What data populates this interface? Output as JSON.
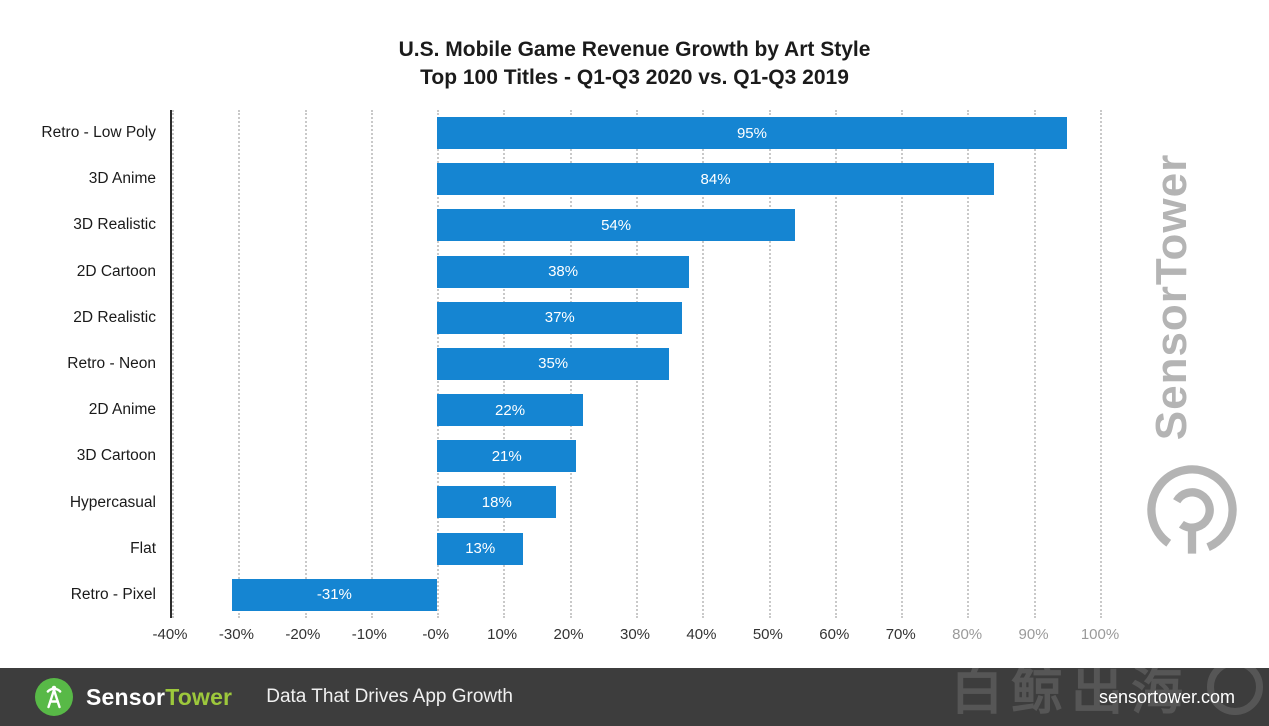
{
  "chart_data": {
    "type": "bar",
    "orientation": "horizontal",
    "title": "U.S. Mobile Game Revenue Growth by Art Style",
    "subtitle": "Top 100 Titles - Q1-Q3 2020 vs. Q1-Q3 2019",
    "categories": [
      "Retro - Low Poly",
      "3D Anime",
      "3D Realistic",
      "2D Cartoon",
      "2D Realistic",
      "Retro - Neon",
      "2D Anime",
      "3D Cartoon",
      "Hypercasual",
      "Flat",
      "Retro - Pixel"
    ],
    "values": [
      95,
      84,
      54,
      38,
      37,
      35,
      22,
      21,
      18,
      13,
      -31
    ],
    "value_labels": [
      "95%",
      "84%",
      "54%",
      "38%",
      "37%",
      "35%",
      "22%",
      "21%",
      "18%",
      "13%",
      "-31%"
    ],
    "xlim": [
      -40,
      100
    ],
    "xticks": [
      -40,
      -30,
      -20,
      -10,
      0,
      10,
      20,
      30,
      40,
      50,
      60,
      70,
      80,
      90,
      100
    ],
    "xtick_labels": [
      "-40%",
      "-30%",
      "-20%",
      "-10%",
      "-0%",
      "10%",
      "20%",
      "30%",
      "40%",
      "50%",
      "60%",
      "70%",
      "80%",
      "90%",
      "100%"
    ],
    "xtick_muted": [
      "80%",
      "90%",
      "100%"
    ],
    "xlabel": "",
    "ylabel": "",
    "grid": "dotted-vertical",
    "legend": "none",
    "bar_color": "#1585d2"
  },
  "watermark": {
    "vertical_text": "SensorTower",
    "color": "#b4b4b4"
  },
  "overlay_watermark": {
    "text": "白鲸出海"
  },
  "footer": {
    "brand_sensor": "Sensor",
    "brand_tower": "Tower",
    "tagline": "Data That Drives App Growth",
    "website": "sensortower.com",
    "bg_color": "#3d3d3d",
    "green": "#58b947",
    "tower_color": "#9dc83c"
  }
}
